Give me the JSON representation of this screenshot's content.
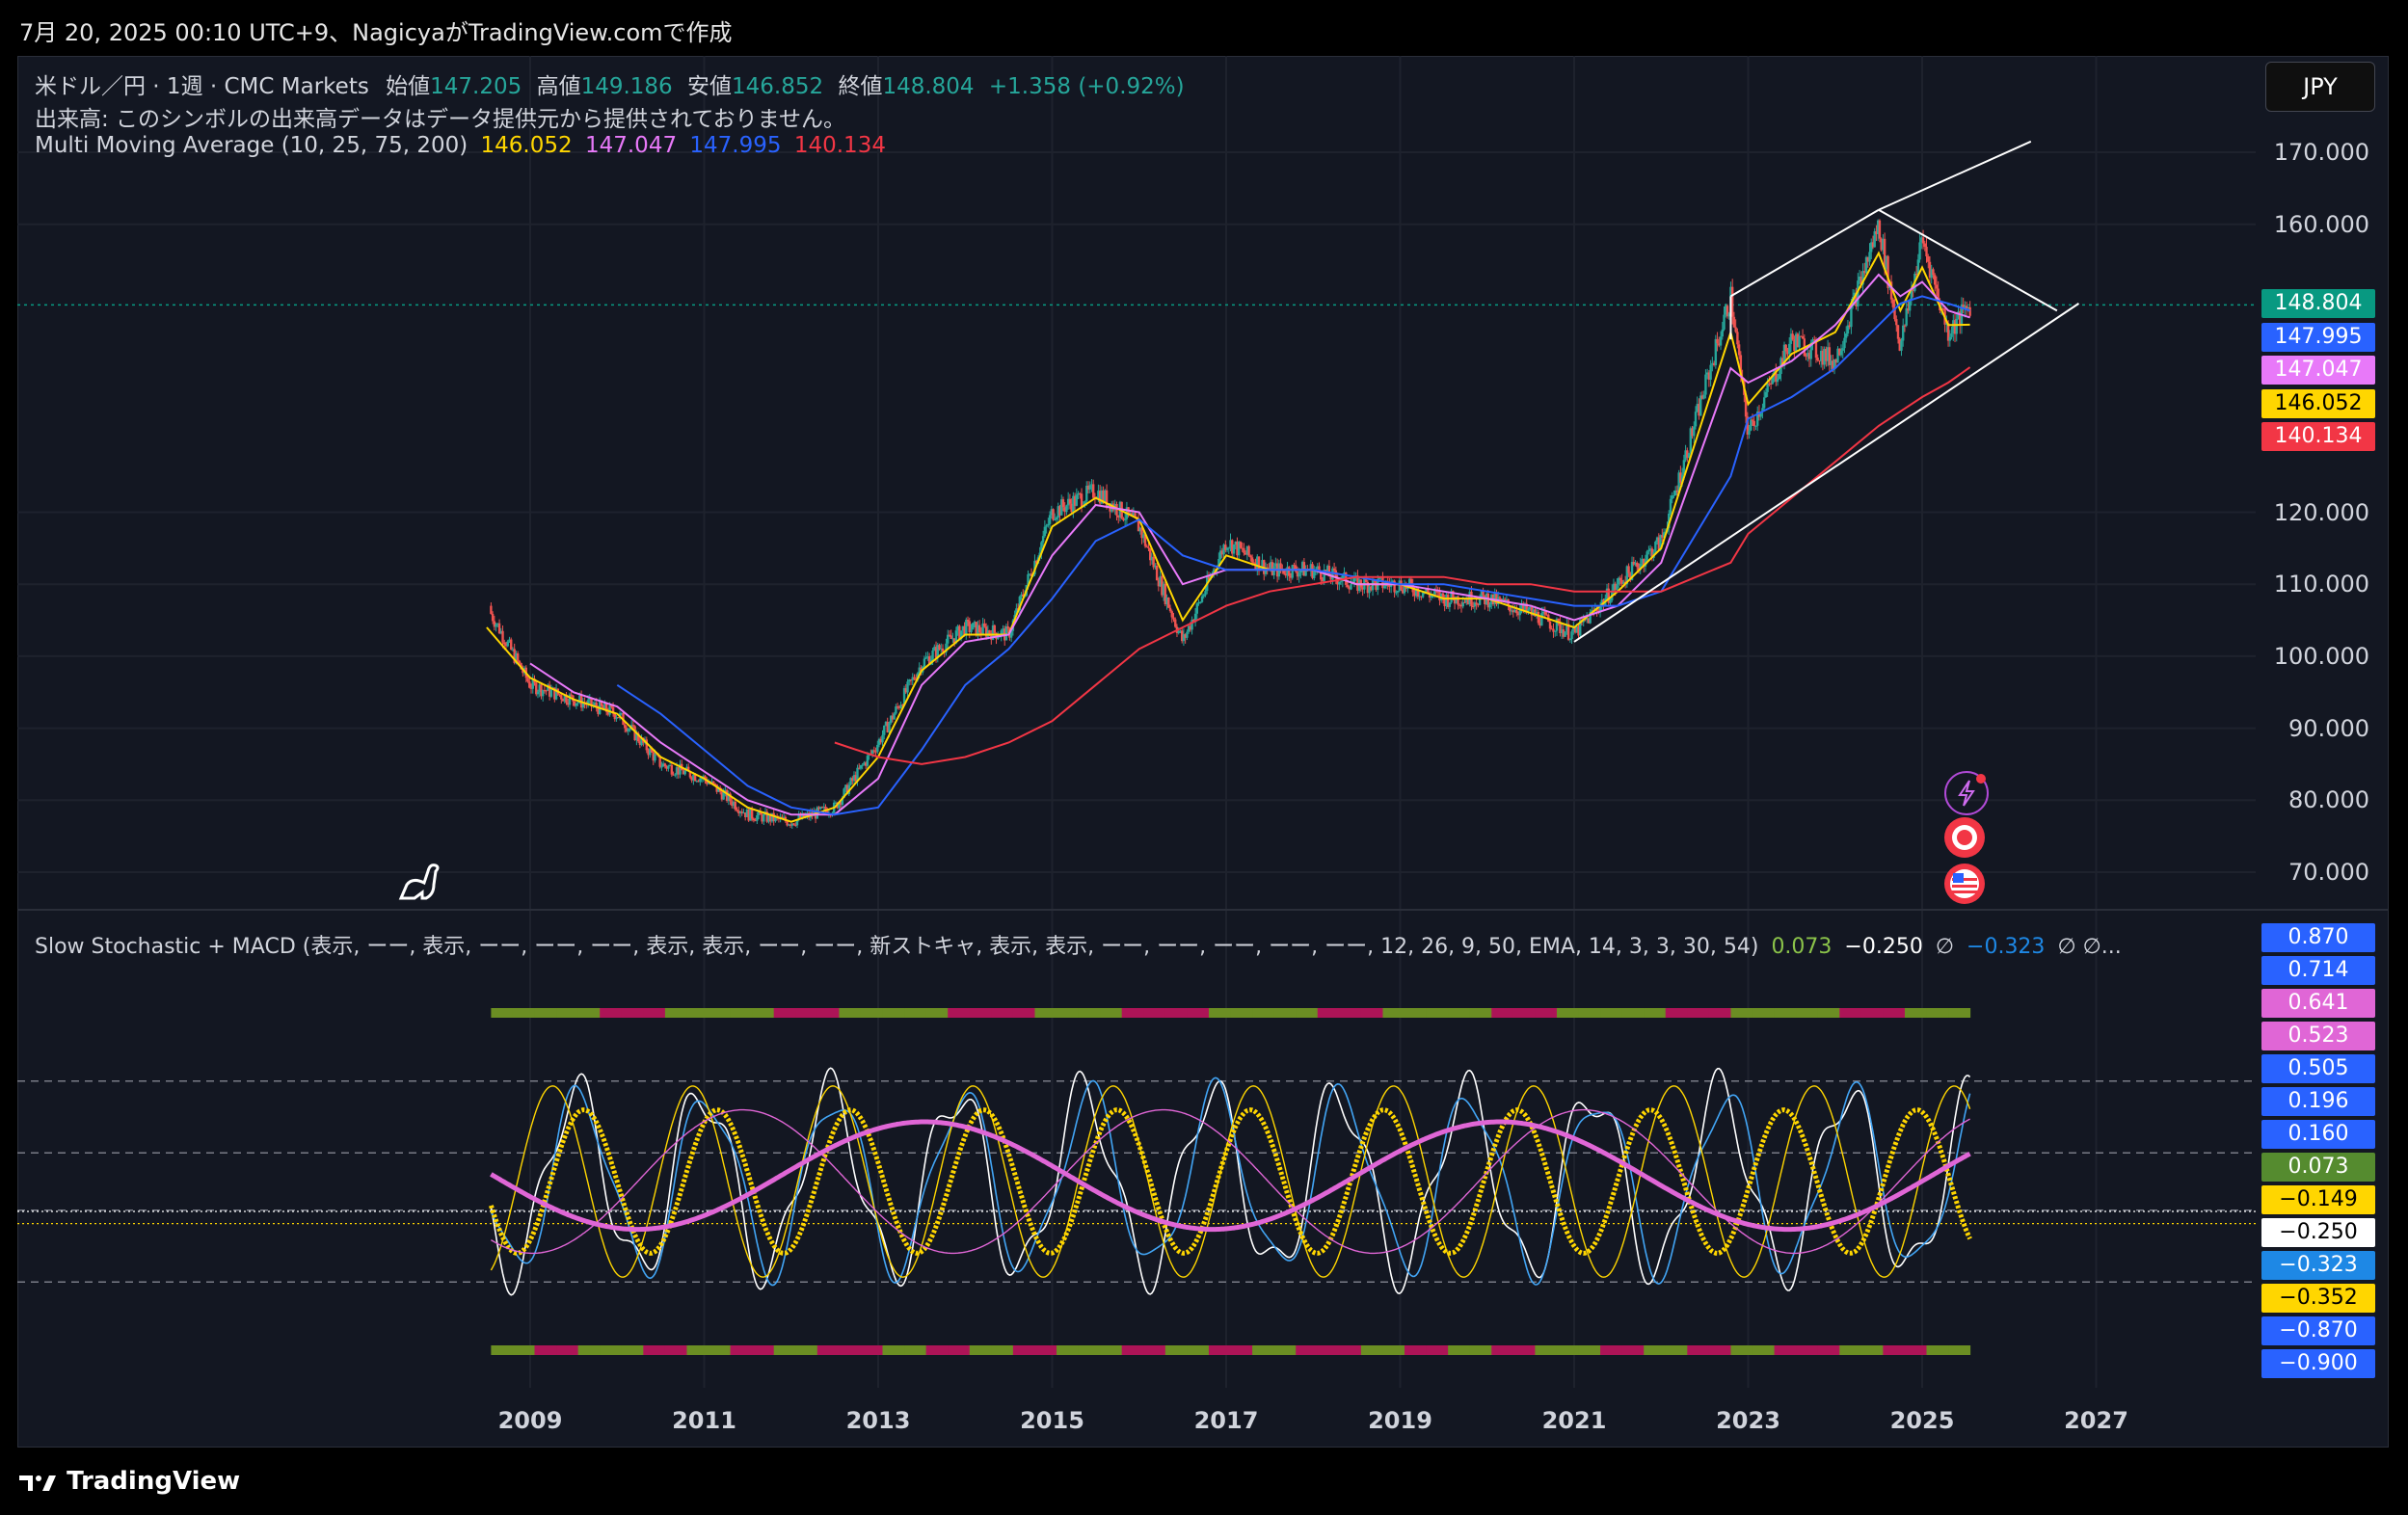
{
  "header": {
    "text": "7月 20, 2025 00:10 UTC+9、NagicyaがTradingView.comで作成"
  },
  "legend": {
    "symbol": "米ドル／円 · 1週 · CMC Markets",
    "o_label": "始値",
    "o": "147.205",
    "h_label": "高値",
    "h": "149.186",
    "l_label": "安値",
    "l": "146.852",
    "c_label": "終値",
    "c": "148.804",
    "chg": "+1.358 (+0.92%)",
    "volume": "出来高: このシンボルの出来高データはデータ提供元から提供されておりません。",
    "ma_name": "Multi Moving Average (10, 25, 75, 200)",
    "ma_values": [
      "146.052",
      "147.047",
      "147.995",
      "140.134"
    ]
  },
  "indicator": {
    "name": "Slow Stochastic + MACD (表示, ーー, 表示, ーー, ーー, ーー, 表示, 表示, ーー, ーー, 新ストキャ, 表示, 表示, ーー, ーー, ーー, ーー, ーー, 12, 26, 9, 50, EMA, 14, 3, 3, 30, 54)",
    "v1": "0.073",
    "v2": "−0.250",
    "v3": "∅",
    "v4": "−0.323",
    "v5": "∅ ∅..."
  },
  "currency_button": "JPY",
  "colors": {
    "bg": "#131722",
    "up": "#26a69a",
    "down": "#ef5350",
    "ma10": "#ffd600",
    "ma25": "#e879f9",
    "ma75": "#2962ff",
    "ma200": "#f23645",
    "stoch": "#ffd600",
    "macd_pink": "#e066d6"
  },
  "price_axis": {
    "ticks": [
      "170.000",
      "160.000",
      "120.000",
      "110.000",
      "100.000",
      "90.000",
      "80.000",
      "70.000"
    ]
  },
  "price_badges": [
    {
      "label": "148.804",
      "color": "#089981"
    },
    {
      "label": "147.995",
      "color": "#2962ff"
    },
    {
      "label": "147.047",
      "color": "#e879f9"
    },
    {
      "label": "146.052",
      "color": "#ffd600"
    },
    {
      "label": "140.134",
      "color": "#f23645"
    }
  ],
  "osc_badges": [
    {
      "label": "0.870",
      "color": "#2962ff"
    },
    {
      "label": "0.714",
      "color": "#2962ff"
    },
    {
      "label": "0.641",
      "color": "#e066d6"
    },
    {
      "label": "0.523",
      "color": "#e066d6"
    },
    {
      "label": "0.505",
      "color": "#2962ff"
    },
    {
      "label": "0.196",
      "color": "#2962ff"
    },
    {
      "label": "0.160",
      "color": "#2962ff"
    },
    {
      "label": "0.073",
      "color": "#558b2f"
    },
    {
      "label": "−0.149",
      "color": "#ffd600"
    },
    {
      "label": "−0.250",
      "color": "#ffffff"
    },
    {
      "label": "−0.323",
      "color": "#1e88e5"
    },
    {
      "label": "−0.352",
      "color": "#ffd600"
    },
    {
      "label": "−0.870",
      "color": "#2962ff"
    },
    {
      "label": "−0.900",
      "color": "#2962ff"
    }
  ],
  "time_axis": {
    "ticks": [
      "2009",
      "2011",
      "2013",
      "2015",
      "2017",
      "2019",
      "2021",
      "2023",
      "2025",
      "2027"
    ]
  },
  "footer": {
    "brand": "TradingView"
  },
  "chart_data": {
    "type": "line",
    "title": "米ドル／円 · 1週 · CMC Markets",
    "x": [
      2008.5,
      2009.0,
      2009.5,
      2010.0,
      2010.5,
      2011.0,
      2011.5,
      2012.0,
      2012.5,
      2013.0,
      2013.5,
      2014.0,
      2014.5,
      2015.0,
      2015.5,
      2016.0,
      2016.5,
      2017.0,
      2017.5,
      2018.0,
      2018.5,
      2019.0,
      2019.5,
      2020.0,
      2020.5,
      2021.0,
      2021.5,
      2022.0,
      2022.8,
      2023.0,
      2023.5,
      2024.0,
      2024.5,
      2024.75,
      2025.0,
      2025.3,
      2025.55
    ],
    "series": [
      {
        "name": "Close",
        "values": [
          107,
          96,
          94,
          92,
          85,
          83,
          78,
          77,
          79,
          88,
          99,
          104,
          103,
          120,
          123,
          118,
          102,
          116,
          112,
          112,
          110,
          110,
          108,
          108,
          106,
          103,
          110,
          116,
          150,
          131,
          144,
          141,
          160,
          143,
          158,
          145,
          148.8
        ]
      },
      {
        "name": "10",
        "values": [
          104,
          97,
          94,
          92,
          86,
          83,
          79,
          77,
          79,
          86,
          98,
          103,
          103,
          118,
          122,
          119,
          105,
          114,
          112,
          112,
          110,
          110,
          108,
          108,
          106,
          104,
          109,
          115,
          145,
          135,
          142,
          145,
          156,
          148,
          154,
          146,
          146.05
        ]
      },
      {
        "name": "25",
        "values": [
          null,
          99,
          95,
          93,
          88,
          84,
          80,
          78,
          78,
          83,
          96,
          102,
          103,
          114,
          121,
          120,
          110,
          112,
          112,
          112,
          110,
          110,
          109,
          108,
          107,
          105,
          107,
          113,
          140,
          138,
          141,
          146,
          153,
          150,
          152,
          148,
          147.05
        ]
      },
      {
        "name": "75",
        "values": [
          null,
          null,
          null,
          96,
          92,
          87,
          82,
          79,
          78,
          79,
          87,
          96,
          101,
          108,
          116,
          119,
          114,
          112,
          112,
          112,
          111,
          110,
          110,
          109,
          108,
          107,
          107,
          109,
          125,
          133,
          136,
          140,
          146,
          149,
          150,
          149,
          148.0
        ]
      },
      {
        "name": "200",
        "values": [
          null,
          null,
          null,
          null,
          null,
          null,
          null,
          null,
          88,
          86,
          85,
          86,
          88,
          91,
          96,
          101,
          104,
          107,
          109,
          110,
          111,
          111,
          111,
          110,
          110,
          109,
          109,
          109,
          113,
          117,
          122,
          127,
          132,
          134,
          136,
          138,
          140.13
        ]
      }
    ],
    "xlim": [
      2008,
      2028
    ],
    "ylim": [
      65,
      175
    ],
    "grid": true,
    "legend": "top-left"
  }
}
